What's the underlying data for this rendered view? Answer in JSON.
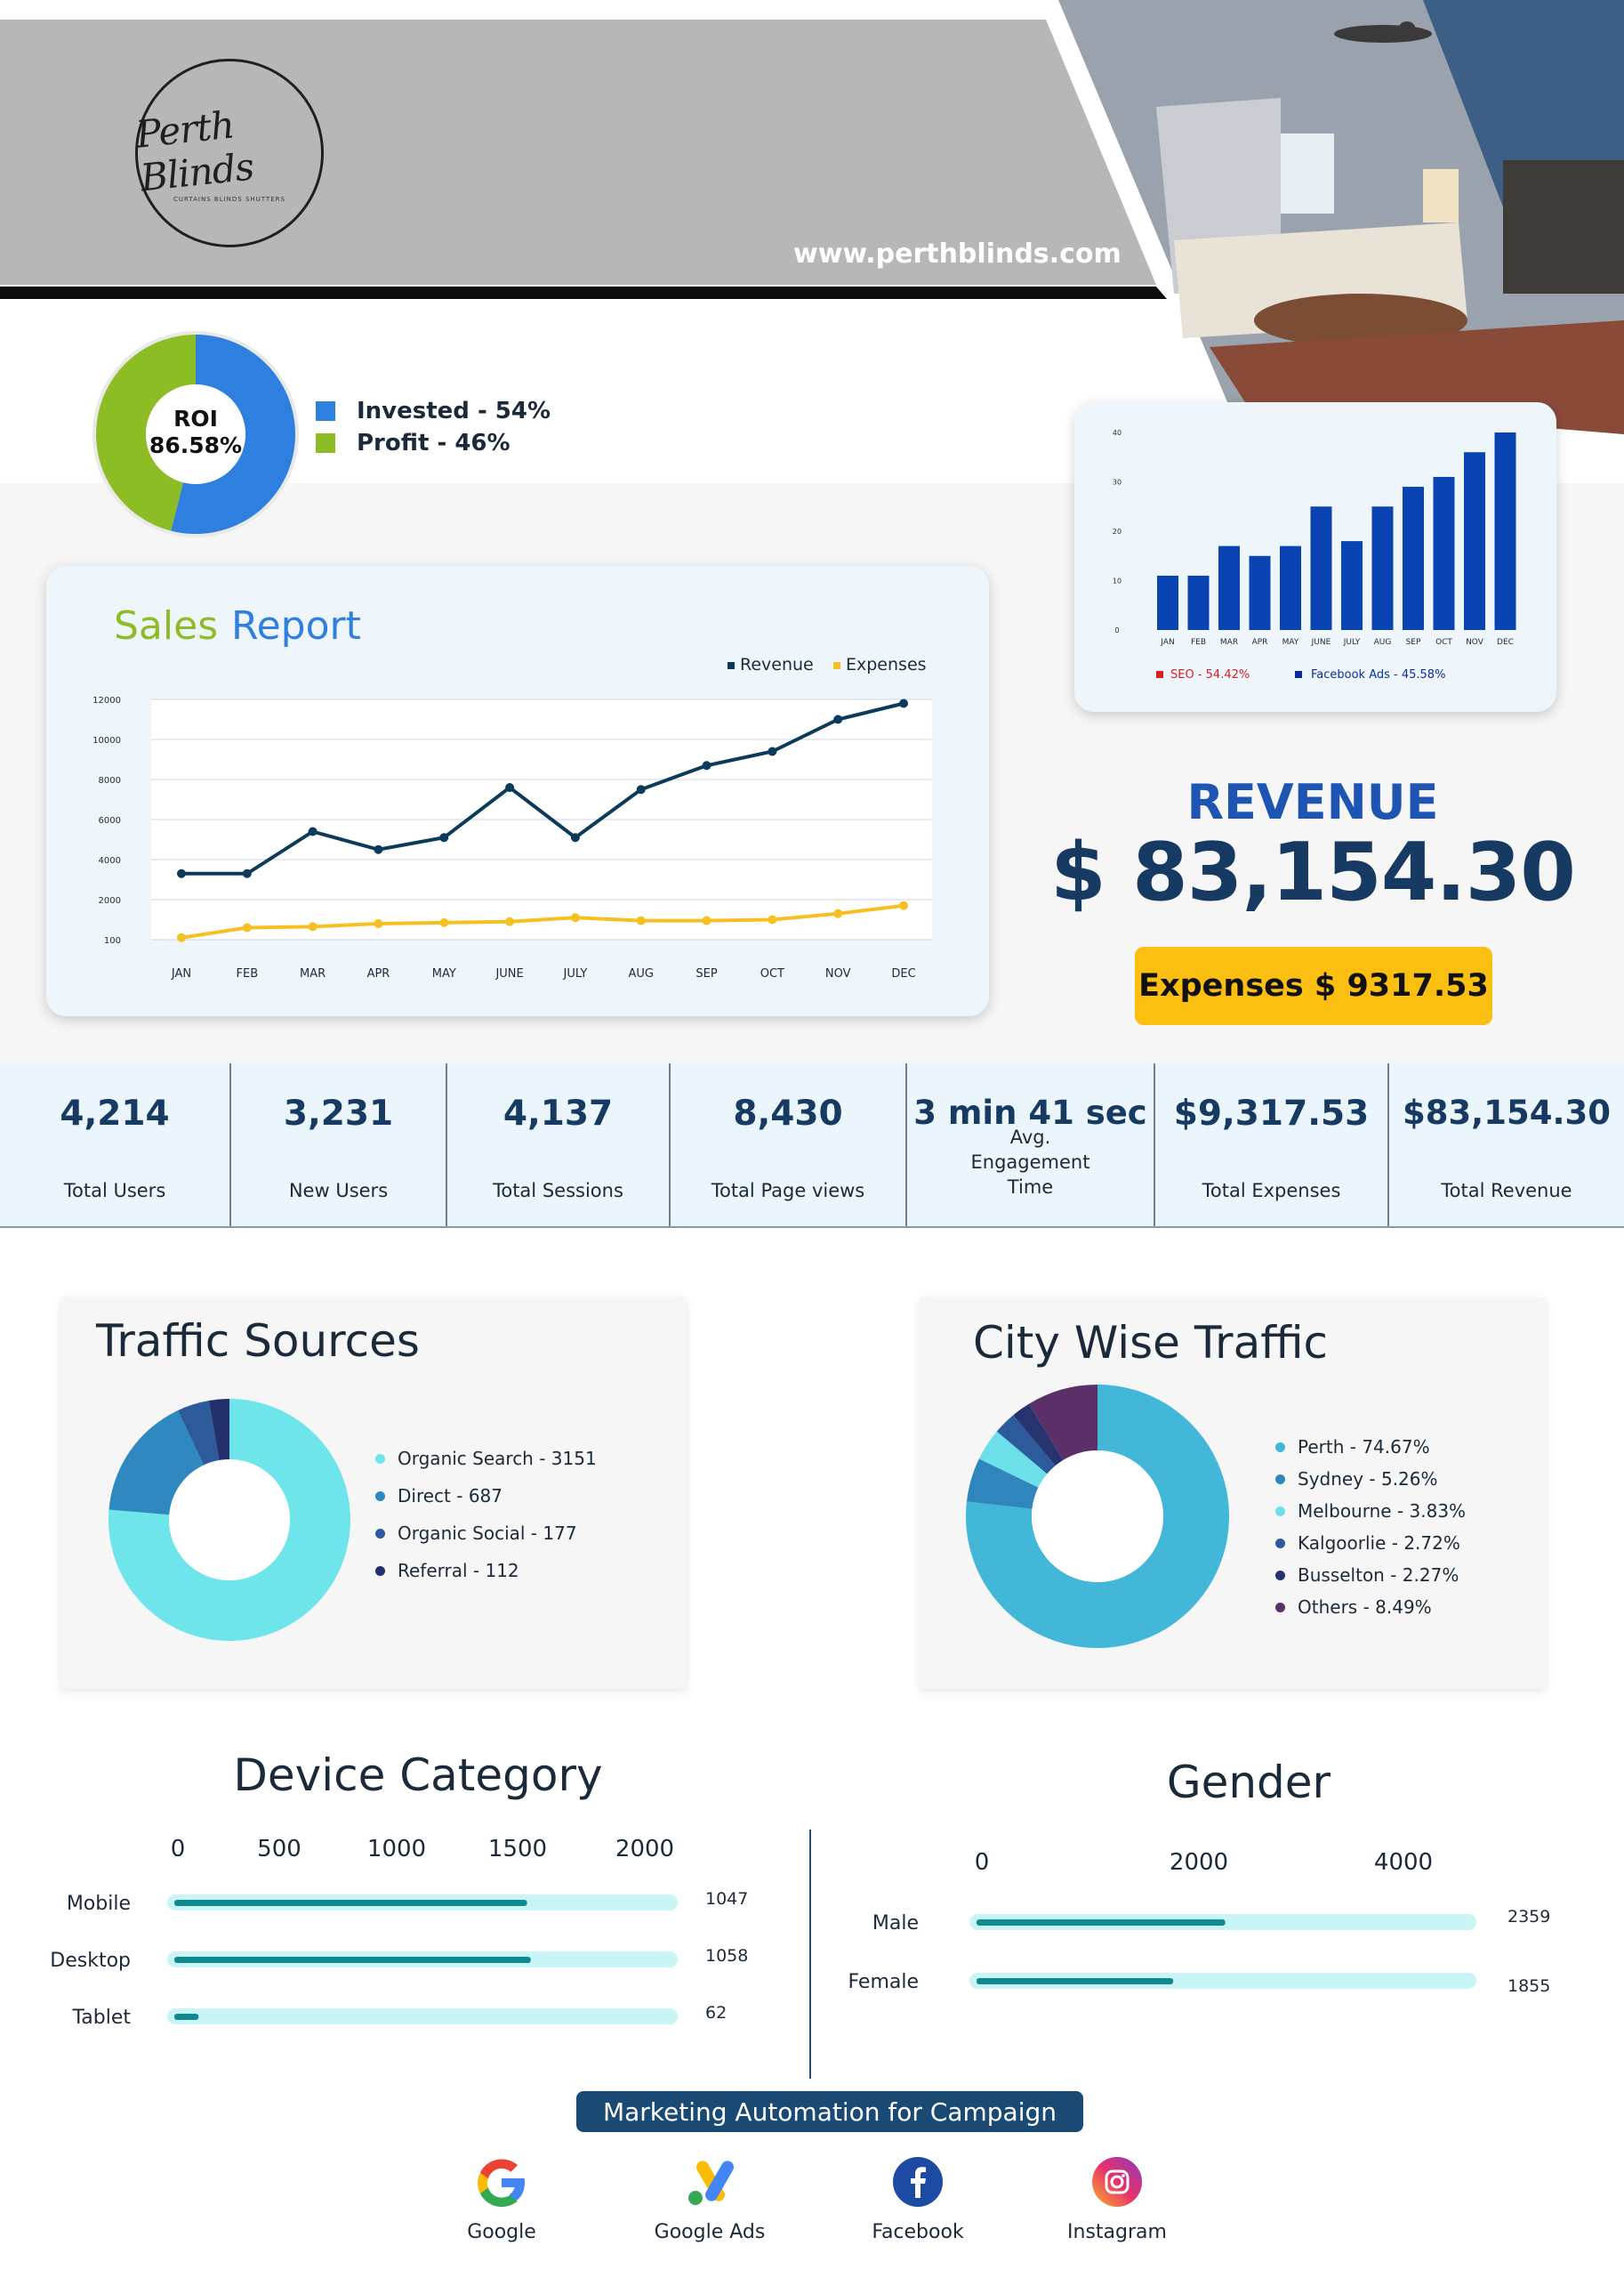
{
  "header": {
    "logo_script": "Perth Blinds",
    "logo_sub": "CURTAINS BLINDS SHUTTERS",
    "website": "www.perthblinds.com"
  },
  "roi": {
    "label": "ROI",
    "value": "86.58%",
    "legend": [
      {
        "label": "Invested - 54%",
        "color": "#2f7fe0"
      },
      {
        "label": "Profit - 46%",
        "color": "#8dbd25"
      }
    ]
  },
  "revenue": {
    "title": "REVENUE",
    "value": "$ 83,154.30",
    "expenses_label": "Expenses $ 9317.53"
  },
  "stats": [
    {
      "value": "4,214",
      "label": "Total Users"
    },
    {
      "value": "3,231",
      "label": "New Users"
    },
    {
      "value": "4,137",
      "label": "Total Sessions"
    },
    {
      "value": "8,430",
      "label": "Total Page views"
    },
    {
      "value": "3 min 41 sec",
      "label": "Avg. Engagement Time"
    },
    {
      "value": "$9,317.53",
      "label": "Total Expenses"
    },
    {
      "value": "$83,154.30",
      "label": "Total Revenue"
    }
  ],
  "traffic": {
    "title": "Traffic Sources"
  },
  "city": {
    "title": "City Wise Traffic"
  },
  "device": {
    "title": "Device Category"
  },
  "gender": {
    "title": "Gender"
  },
  "campaign": {
    "title": "Marketing Automation for Campaign",
    "channels": [
      "Google",
      "Google Ads",
      "Facebook",
      "Instagram"
    ]
  },
  "chart_data": [
    {
      "type": "pie",
      "categories": [
        "Invested",
        "Profit"
      ],
      "values": [
        54,
        46
      ],
      "colors": [
        "#2f7fe0",
        "#8dbd25"
      ]
    },
    {
      "type": "line",
      "title": "Sales Report",
      "categories": [
        "JAN",
        "FEB",
        "MAR",
        "APR",
        "MAY",
        "JUNE",
        "JULY",
        "AUG",
        "SEP",
        "OCT",
        "NOV",
        "DEC"
      ],
      "series": [
        {
          "name": "Revenue",
          "color": "#0b3a5a",
          "values": [
            3300,
            3300,
            5400,
            4500,
            5100,
            7600,
            5100,
            7500,
            8700,
            9400,
            11000,
            11800
          ]
        },
        {
          "name": "Expenses",
          "color": "#f6c022",
          "values": [
            100,
            600,
            650,
            800,
            850,
            900,
            1100,
            950,
            950,
            1000,
            1300,
            1700
          ]
        }
      ],
      "yticks": [
        "12000",
        "10000",
        "8000",
        "6000",
        "4000",
        "2000",
        "100"
      ],
      "ylim": [
        0,
        12000
      ],
      "grid": true,
      "legend_position": "top-right"
    },
    {
      "type": "bar",
      "categories": [
        "JAN",
        "FEB",
        "MAR",
        "APR",
        "MAY",
        "JUNE",
        "JULY",
        "AUG",
        "SEP",
        "OCT",
        "NOV",
        "DEC"
      ],
      "values": [
        11,
        11,
        17,
        15,
        17,
        25,
        18,
        25,
        29,
        31,
        36,
        40
      ],
      "yticks": [
        "40",
        "30",
        "20",
        "10",
        "0"
      ],
      "ylim": [
        0,
        40
      ],
      "color": "#0a44b3",
      "legend": [
        {
          "label": "SEO - 54.42%",
          "color": "#d81f26"
        },
        {
          "label": "Facebook Ads - 45.58%",
          "color": "#0a2f9c"
        }
      ]
    },
    {
      "type": "pie",
      "title": "Traffic Sources",
      "legend": [
        "Organic Search - 3151",
        "Direct -  687",
        "Organic Social - 177",
        "Referral - 112"
      ],
      "values": [
        3151,
        687,
        177,
        112
      ],
      "colors": [
        "#6ee5ea",
        "#2f88c0",
        "#2c5a9a",
        "#24306b"
      ]
    },
    {
      "type": "pie",
      "title": "City Wise Traffic",
      "legend": [
        "Perth - 74.67%",
        "Sydney - 5.26%",
        "Melbourne - 3.83%",
        "Kalgoorlie - 2.72%",
        "Busselton  - 2.27%",
        "Others - 8.49%"
      ],
      "values": [
        74.67,
        5.26,
        3.83,
        2.72,
        2.27,
        8.49
      ],
      "colors": [
        "#42b7d8",
        "#2e86bd",
        "#6be0e8",
        "#2c5a9a",
        "#27336e",
        "#5b3068"
      ]
    },
    {
      "type": "bar",
      "orientation": "horizontal",
      "title": "Device Category",
      "categories": [
        "Mobile",
        "Desktop",
        "Tablet"
      ],
      "values": [
        1047,
        1058,
        62
      ],
      "value_labels": [
        "1047",
        "1058",
        "62"
      ],
      "xticks": [
        "0",
        "500",
        "1000",
        "1500",
        "2000"
      ],
      "xlim": [
        0,
        2000
      ]
    },
    {
      "type": "bar",
      "orientation": "horizontal",
      "title": "Gender",
      "categories": [
        "Male",
        "Female"
      ],
      "values": [
        2359,
        1855
      ],
      "value_labels": [
        "2359",
        "1855"
      ],
      "xticks": [
        "0",
        "2000",
        "4000"
      ],
      "xlim": [
        0,
        4000
      ]
    }
  ]
}
